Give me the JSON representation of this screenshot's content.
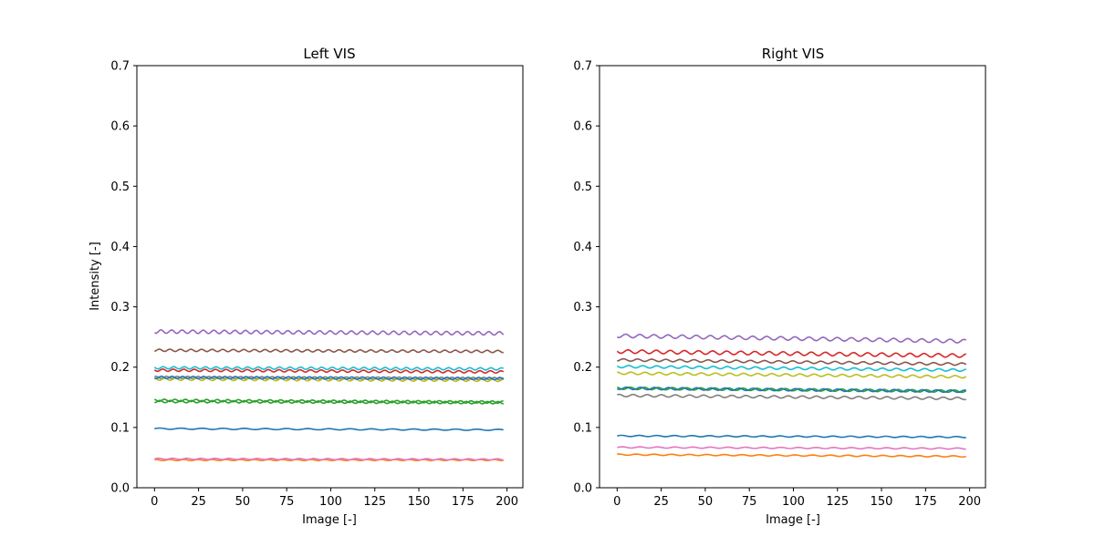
{
  "chart_data": [
    {
      "type": "line",
      "title": "Left VIS",
      "xlabel": "Image [-]",
      "ylabel": "Intensity [-]",
      "xlim": [
        -10,
        209
      ],
      "ylim": [
        0,
        0.7
      ],
      "xticks": [
        0,
        25,
        50,
        75,
        100,
        125,
        150,
        175,
        200
      ],
      "yticks": [
        0.0,
        0.1,
        0.2,
        0.3,
        0.4,
        0.5,
        0.6,
        0.7
      ],
      "grid": false,
      "legend": "none",
      "x": {
        "start": 0,
        "end": 198
      },
      "series": [
        {
          "color": "#1f77b4",
          "start": 0.098,
          "end": 0.096,
          "amplitude": 0.001,
          "period": 12
        },
        {
          "color": "#ff7f0e",
          "start": 0.046,
          "end": 0.046,
          "amplitude": 0.001,
          "period": 8
        },
        {
          "color": "#2ca02c",
          "start": 0.145,
          "end": 0.142,
          "amplitude": 0.002,
          "period": 6
        },
        {
          "color": "#d62728",
          "start": 0.195,
          "end": 0.192,
          "amplitude": 0.002,
          "period": 6
        },
        {
          "color": "#9467bd",
          "start": 0.259,
          "end": 0.256,
          "amplitude": 0.003,
          "period": 6
        },
        {
          "color": "#8c564b",
          "start": 0.228,
          "end": 0.226,
          "amplitude": 0.002,
          "period": 6
        },
        {
          "color": "#e377c2",
          "start": 0.048,
          "end": 0.047,
          "amplitude": 0.001,
          "period": 8
        },
        {
          "color": "#7f7f7f",
          "start": 0.183,
          "end": 0.181,
          "amplitude": 0.002,
          "period": 6
        },
        {
          "color": "#bcbd22",
          "start": 0.18,
          "end": 0.178,
          "amplitude": 0.002,
          "period": 6
        },
        {
          "color": "#17becf",
          "start": 0.199,
          "end": 0.197,
          "amplitude": 0.002,
          "period": 6
        },
        {
          "color": "#1f77b4",
          "start": 0.183,
          "end": 0.181,
          "amplitude": 0.002,
          "period": 6
        },
        {
          "color": "#2ca02c",
          "start": 0.143,
          "end": 0.141,
          "amplitude": 0.002,
          "period": 6
        }
      ]
    },
    {
      "type": "line",
      "title": "Right VIS",
      "xlabel": "Image [-]",
      "ylabel": "",
      "xlim": [
        -10,
        209
      ],
      "ylim": [
        0,
        0.7
      ],
      "xticks": [
        0,
        25,
        50,
        75,
        100,
        125,
        150,
        175,
        200
      ],
      "yticks": [
        0.0,
        0.1,
        0.2,
        0.3,
        0.4,
        0.5,
        0.6,
        0.7
      ],
      "grid": false,
      "legend": "none",
      "x": {
        "start": 0,
        "end": 198
      },
      "series": [
        {
          "color": "#1f77b4",
          "start": 0.086,
          "end": 0.084,
          "amplitude": 0.001,
          "period": 10
        },
        {
          "color": "#ff7f0e",
          "start": 0.055,
          "end": 0.052,
          "amplitude": 0.001,
          "period": 10
        },
        {
          "color": "#2ca02c",
          "start": 0.165,
          "end": 0.16,
          "amplitude": 0.002,
          "period": 8
        },
        {
          "color": "#d62728",
          "start": 0.226,
          "end": 0.219,
          "amplitude": 0.003,
          "period": 8
        },
        {
          "color": "#9467bd",
          "start": 0.252,
          "end": 0.243,
          "amplitude": 0.003,
          "period": 8
        },
        {
          "color": "#8c564b",
          "start": 0.212,
          "end": 0.205,
          "amplitude": 0.002,
          "period": 8
        },
        {
          "color": "#e377c2",
          "start": 0.067,
          "end": 0.065,
          "amplitude": 0.001,
          "period": 10
        },
        {
          "color": "#7f7f7f",
          "start": 0.153,
          "end": 0.148,
          "amplitude": 0.002,
          "period": 8
        },
        {
          "color": "#bcbd22",
          "start": 0.19,
          "end": 0.184,
          "amplitude": 0.002,
          "period": 8
        },
        {
          "color": "#17becf",
          "start": 0.201,
          "end": 0.195,
          "amplitude": 0.002,
          "period": 8
        },
        {
          "color": "#1f77b4",
          "start": 0.165,
          "end": 0.16,
          "amplitude": 0.002,
          "period": 8
        }
      ]
    }
  ]
}
